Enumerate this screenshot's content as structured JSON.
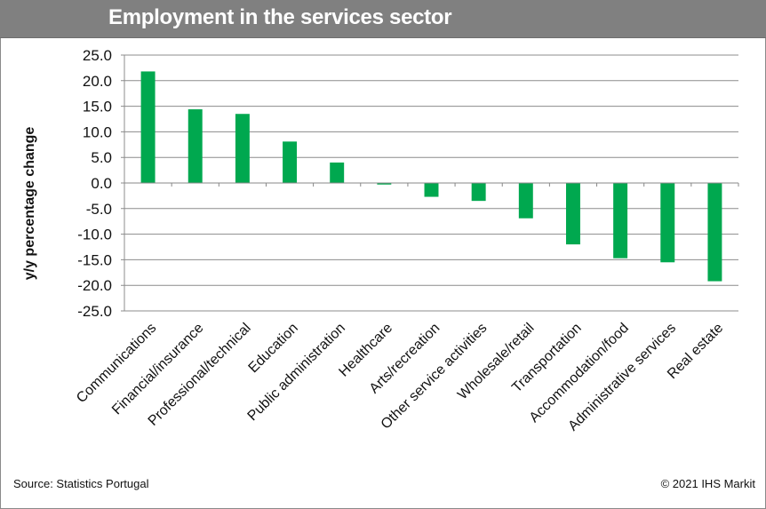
{
  "header": {
    "title": "Employment in the services sector"
  },
  "footer": {
    "source": "Source: Statistics Portugal",
    "copyright": "© 2021 IHS Markit"
  },
  "colors": {
    "bar": "#00A84F",
    "title_bar": "#808080",
    "grid": "#8c8c8c"
  },
  "chart_data": {
    "type": "bar",
    "title": "Employment in the services sector",
    "xlabel": "",
    "ylabel": "y/y percentage change",
    "ylim": [
      -25,
      25
    ],
    "ytick_step": 5,
    "ytick_labels": [
      "25.0",
      "20.0",
      "15.0",
      "10.0",
      "5.0",
      "0.0",
      "-5.0",
      "-10.0",
      "-15.0",
      "-20.0",
      "-25.0"
    ],
    "grid": true,
    "legend": "none",
    "categories": [
      "Communications",
      "Financial/insurance",
      "Professional/technical",
      "Education",
      "Public administration",
      "Healthcare",
      "Arts/recreation",
      "Other service activities",
      "Wholesale/retail",
      "Transportation",
      "Accommodation/food",
      "Administrative services",
      "Real estate"
    ],
    "series": [
      {
        "name": "y/y percentage change",
        "values": [
          21.8,
          14.4,
          13.5,
          8.1,
          4.0,
          -0.3,
          -2.7,
          -3.5,
          -6.9,
          -12.0,
          -14.7,
          -15.5,
          -19.2
        ]
      }
    ]
  }
}
